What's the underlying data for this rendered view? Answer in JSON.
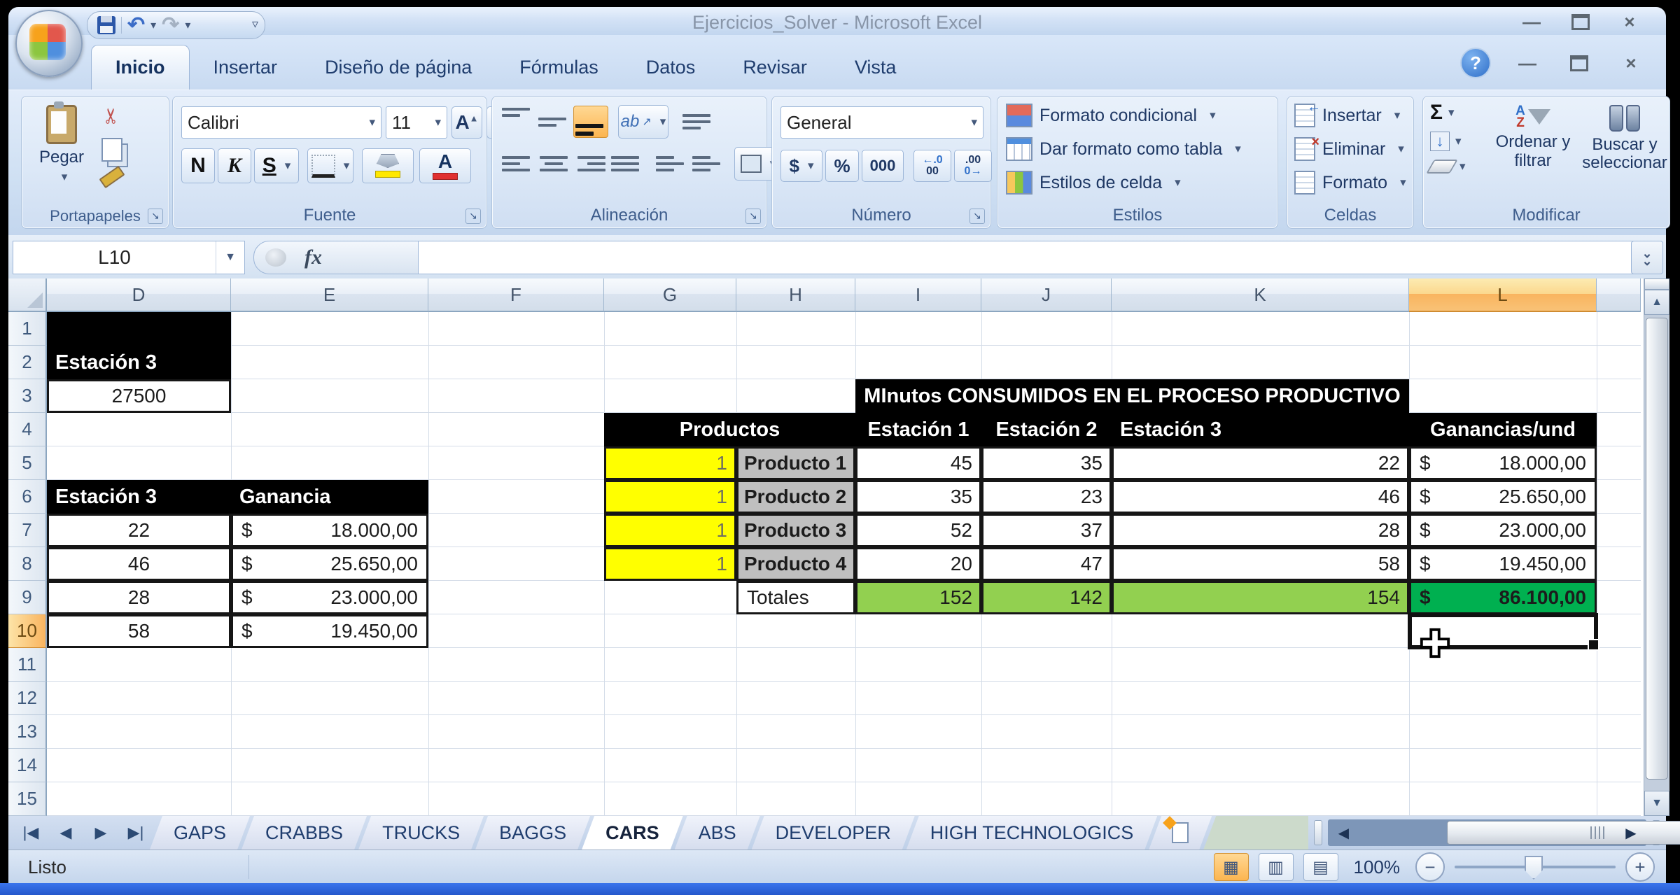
{
  "window": {
    "title": "Ejercicios_Solver - Microsoft Excel",
    "minimize": "—",
    "close": "×"
  },
  "ribbon": {
    "tabs": [
      {
        "label": "Inicio",
        "active": true
      },
      {
        "label": "Insertar",
        "active": false
      },
      {
        "label": "Diseño de página",
        "active": false
      },
      {
        "label": "Fórmulas",
        "active": false
      },
      {
        "label": "Datos",
        "active": false
      },
      {
        "label": "Revisar",
        "active": false
      },
      {
        "label": "Vista",
        "active": false
      }
    ],
    "clipboard": {
      "label": "Portapapeles",
      "paste": "Pegar"
    },
    "font": {
      "label": "Fuente",
      "name": "Calibri",
      "size": "11",
      "bold": "N",
      "italic": "K",
      "underline": "S"
    },
    "alignment": {
      "label": "Alineación",
      "orientation": "ab"
    },
    "number": {
      "label": "Número",
      "format": "General",
      "currency": "$",
      "percent": "%",
      "thousands": "000",
      "inc_top": "←.0",
      "inc_bot": "00",
      "dec_top": ".00",
      "dec_bot": "0→"
    },
    "styles": {
      "label": "Estilos",
      "items": [
        "Formato condicional",
        "Dar formato como tabla",
        "Estilos de celda"
      ]
    },
    "cells": {
      "label": "Celdas",
      "items": [
        "Insertar",
        "Eliminar",
        "Formato"
      ]
    },
    "editing": {
      "label": "Modificar",
      "sum": "Σ",
      "sort": "Ordenar y filtrar",
      "find": "Buscar y seleccionar"
    }
  },
  "formula_bar": {
    "name_box": "L10",
    "fx": "fx",
    "content": ""
  },
  "grid": {
    "columns": [
      "D",
      "E",
      "F",
      "G",
      "H",
      "I",
      "J",
      "K",
      "L"
    ],
    "active_column": "L",
    "active_row": 10,
    "row_count": 15,
    "colors": {
      "yellow": "#FFFF00",
      "gray": "#BFBFBF",
      "green": "#92D050",
      "dark_green": "#00B050",
      "header": "#000000"
    },
    "cells": [
      {
        "ref": "D1",
        "col": "D",
        "row": 1,
        "text": "",
        "style": "black"
      },
      {
        "ref": "D2",
        "col": "D",
        "row": 2,
        "text": "Estación 3",
        "style": "black left"
      },
      {
        "ref": "D3",
        "col": "D",
        "row": 3,
        "text": "27500",
        "style": "boxed center"
      },
      {
        "ref": "D6",
        "col": "D",
        "row": 6,
        "text": "Estación 3",
        "style": "black left"
      },
      {
        "ref": "E6",
        "col": "E",
        "row": 6,
        "text": "Ganancia",
        "style": "black left"
      },
      {
        "ref": "D7",
        "col": "D",
        "row": 7,
        "text": "22",
        "style": "boxed center"
      },
      {
        "ref": "E7",
        "col": "E",
        "row": 7,
        "currency": "$",
        "text": "18.000,00",
        "style": "boxed money"
      },
      {
        "ref": "D8",
        "col": "D",
        "row": 8,
        "text": "46",
        "style": "boxed center"
      },
      {
        "ref": "E8",
        "col": "E",
        "row": 8,
        "currency": "$",
        "text": "25.650,00",
        "style": "boxed money"
      },
      {
        "ref": "D9",
        "col": "D",
        "row": 9,
        "text": "28",
        "style": "boxed center"
      },
      {
        "ref": "E9",
        "col": "E",
        "row": 9,
        "currency": "$",
        "text": "23.000,00",
        "style": "boxed money"
      },
      {
        "ref": "D10",
        "col": "D",
        "row": 10,
        "text": "58",
        "style": "boxed center"
      },
      {
        "ref": "E10",
        "col": "E",
        "row": 10,
        "currency": "$",
        "text": "19.450,00",
        "style": "boxed money"
      },
      {
        "ref": "I3",
        "col": "I",
        "row": 3,
        "span": 3,
        "text": "MInutos CONSUMIDOS EN EL PROCESO PRODUCTIVO",
        "style": "black center"
      },
      {
        "ref": "G4",
        "col": "G",
        "row": 4,
        "span": 2,
        "text": "Productos",
        "style": "black center"
      },
      {
        "ref": "I4",
        "col": "I",
        "row": 4,
        "text": "Estación 1",
        "style": "black center"
      },
      {
        "ref": "J4",
        "col": "J",
        "row": 4,
        "text": "Estación 2",
        "style": "black center"
      },
      {
        "ref": "K4",
        "col": "K",
        "row": 4,
        "text": "Estación 3",
        "style": "black left"
      },
      {
        "ref": "L4",
        "col": "L",
        "row": 4,
        "text": "Ganancias/und",
        "style": "black center"
      },
      {
        "ref": "G5",
        "col": "G",
        "row": 5,
        "text": "1",
        "style": "yellow right"
      },
      {
        "ref": "H5",
        "col": "H",
        "row": 5,
        "text": "Producto 1",
        "style": "gray"
      },
      {
        "ref": "I5",
        "col": "I",
        "row": 5,
        "text": "45",
        "style": "boxed right"
      },
      {
        "ref": "J5",
        "col": "J",
        "row": 5,
        "text": "35",
        "style": "boxed right"
      },
      {
        "ref": "K5",
        "col": "K",
        "row": 5,
        "text": "22",
        "style": "boxed right"
      },
      {
        "ref": "L5",
        "col": "L",
        "row": 5,
        "currency": "$",
        "text": "18.000,00",
        "style": "boxed money"
      },
      {
        "ref": "G6",
        "col": "G",
        "row": 6,
        "text": "1",
        "style": "yellow right"
      },
      {
        "ref": "H6",
        "col": "H",
        "row": 6,
        "text": "Producto 2",
        "style": "gray"
      },
      {
        "ref": "I6",
        "col": "I",
        "row": 6,
        "text": "35",
        "style": "boxed right"
      },
      {
        "ref": "J6",
        "col": "J",
        "row": 6,
        "text": "23",
        "style": "boxed right"
      },
      {
        "ref": "K6",
        "col": "K",
        "row": 6,
        "text": "46",
        "style": "boxed right"
      },
      {
        "ref": "L6",
        "col": "L",
        "row": 6,
        "currency": "$",
        "text": "25.650,00",
        "style": "boxed money"
      },
      {
        "ref": "G7",
        "col": "G",
        "row": 7,
        "text": "1",
        "style": "yellow right"
      },
      {
        "ref": "H7",
        "col": "H",
        "row": 7,
        "text": "Producto 3",
        "style": "gray"
      },
      {
        "ref": "I7",
        "col": "I",
        "row": 7,
        "text": "52",
        "style": "boxed right"
      },
      {
        "ref": "J7",
        "col": "J",
        "row": 7,
        "text": "37",
        "style": "boxed right"
      },
      {
        "ref": "K7",
        "col": "K",
        "row": 7,
        "text": "28",
        "style": "boxed right"
      },
      {
        "ref": "L7",
        "col": "L",
        "row": 7,
        "currency": "$",
        "text": "23.000,00",
        "style": "boxed money"
      },
      {
        "ref": "G8",
        "col": "G",
        "row": 8,
        "text": "1",
        "style": "yellow right"
      },
      {
        "ref": "H8",
        "col": "H",
        "row": 8,
        "text": "Producto 4",
        "style": "gray"
      },
      {
        "ref": "I8",
        "col": "I",
        "row": 8,
        "text": "20",
        "style": "boxed right"
      },
      {
        "ref": "J8",
        "col": "J",
        "row": 8,
        "text": "47",
        "style": "boxed right"
      },
      {
        "ref": "K8",
        "col": "K",
        "row": 8,
        "text": "58",
        "style": "boxed right"
      },
      {
        "ref": "L8",
        "col": "L",
        "row": 8,
        "currency": "$",
        "text": "19.450,00",
        "style": "boxed money"
      },
      {
        "ref": "H9",
        "col": "H",
        "row": 9,
        "text": "Totales",
        "style": "boxed left"
      },
      {
        "ref": "I9",
        "col": "I",
        "row": 9,
        "text": "152",
        "style": "green right"
      },
      {
        "ref": "J9",
        "col": "J",
        "row": 9,
        "text": "142",
        "style": "green right"
      },
      {
        "ref": "K9",
        "col": "K",
        "row": 9,
        "text": "154",
        "style": "green right"
      },
      {
        "ref": "L9",
        "col": "L",
        "row": 9,
        "currency": "$",
        "text": "86.100,00",
        "style": "green2 money"
      }
    ]
  },
  "sheet_tabs": {
    "tabs": [
      {
        "label": "GAPS",
        "active": false
      },
      {
        "label": "CRABBS",
        "active": false
      },
      {
        "label": "TRUCKS",
        "active": false
      },
      {
        "label": "BAGGS",
        "active": false
      },
      {
        "label": "CARS",
        "active": true
      },
      {
        "label": "ABS",
        "active": false
      },
      {
        "label": "DEVELOPER",
        "active": false
      },
      {
        "label": "HIGH TECHNOLOGICS",
        "active": false
      }
    ]
  },
  "status_bar": {
    "status": "Listo",
    "zoom": "100%"
  }
}
